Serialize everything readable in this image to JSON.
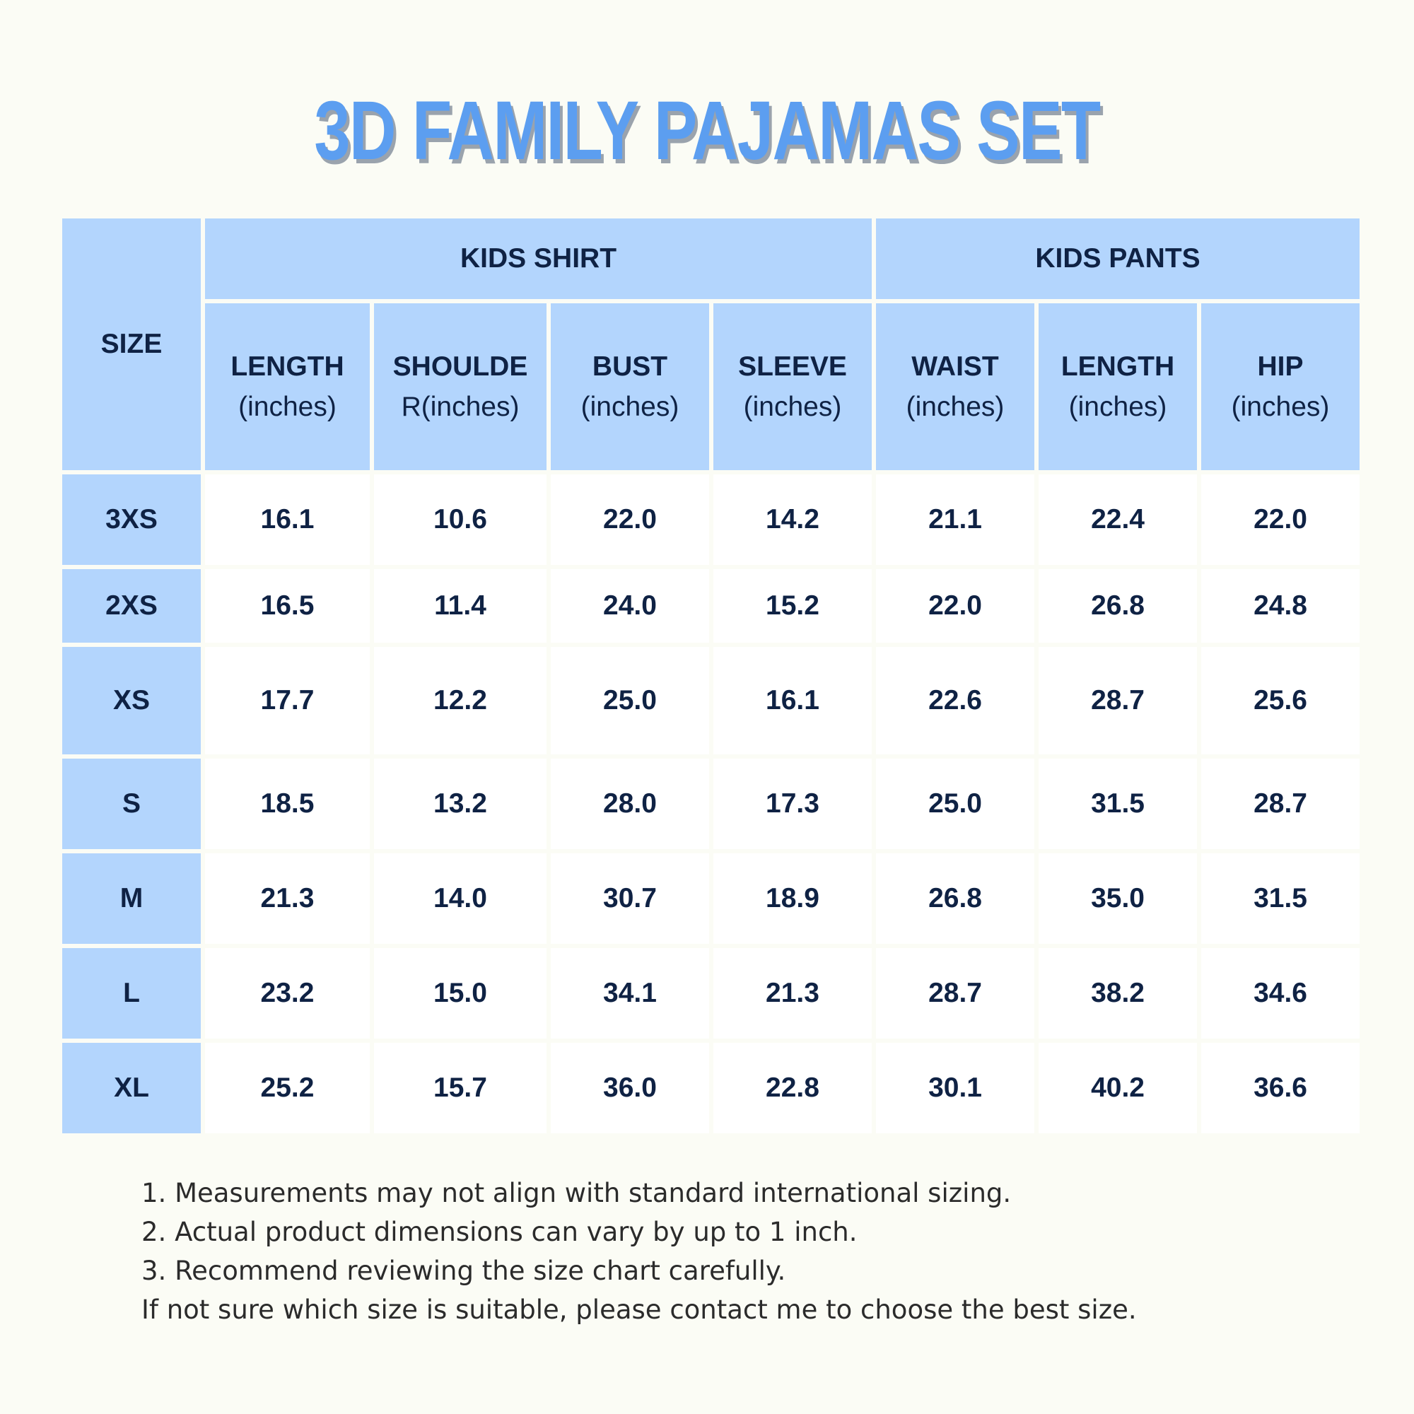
{
  "title": "3D FAMILY PAJAMAS SET",
  "table": {
    "size_header": "SIZE",
    "groups": [
      {
        "label": "KIDS SHIRT",
        "span": 4
      },
      {
        "label": "KIDS PANTS",
        "span": 3
      }
    ],
    "columns": [
      {
        "name": "LENGTH",
        "unit": "(inches)"
      },
      {
        "name": "SHOULDE",
        "unit": "R(inches)"
      },
      {
        "name": "BUST",
        "unit": "(inches)"
      },
      {
        "name": "SLEEVE",
        "unit": "(inches)"
      },
      {
        "name": "WAIST",
        "unit": "(inches)"
      },
      {
        "name": "LENGTH",
        "unit": "(inches)"
      },
      {
        "name": "HIP",
        "unit": "(inches)"
      }
    ],
    "rows": [
      {
        "size": "3XS",
        "values": [
          "16.1",
          "10.6",
          "22.0",
          "14.2",
          "21.1",
          "22.4",
          "22.0"
        ]
      },
      {
        "size": "2XS",
        "values": [
          "16.5",
          "11.4",
          "24.0",
          "15.2",
          "22.0",
          "26.8",
          "24.8"
        ]
      },
      {
        "size": "XS",
        "values": [
          "17.7",
          "12.2",
          "25.0",
          "16.1",
          "22.6",
          "28.7",
          "25.6"
        ]
      },
      {
        "size": "S",
        "values": [
          "18.5",
          "13.2",
          "28.0",
          "17.3",
          "25.0",
          "31.5",
          "28.7"
        ]
      },
      {
        "size": "M",
        "values": [
          "21.3",
          "14.0",
          "30.7",
          "18.9",
          "26.8",
          "35.0",
          "31.5"
        ]
      },
      {
        "size": "L",
        "values": [
          "23.2",
          "15.0",
          "34.1",
          "21.3",
          "28.7",
          "38.2",
          "34.6"
        ]
      },
      {
        "size": "XL",
        "values": [
          "25.2",
          "15.7",
          "36.0",
          "22.8",
          "30.1",
          "40.2",
          "36.6"
        ]
      }
    ]
  },
  "notes": [
    "1. Measurements may not align with standard international sizing.",
    "2. Actual product dimensions can vary by up to 1 inch.",
    "3. Recommend reviewing the size chart carefully.",
    "If not sure which size is suitable, please contact me to choose the best size."
  ],
  "colors": {
    "background": "#fbfcf5",
    "header_fill": "#b3d5fd",
    "title": "#5c9ef0",
    "text": "#0f2244"
  }
}
